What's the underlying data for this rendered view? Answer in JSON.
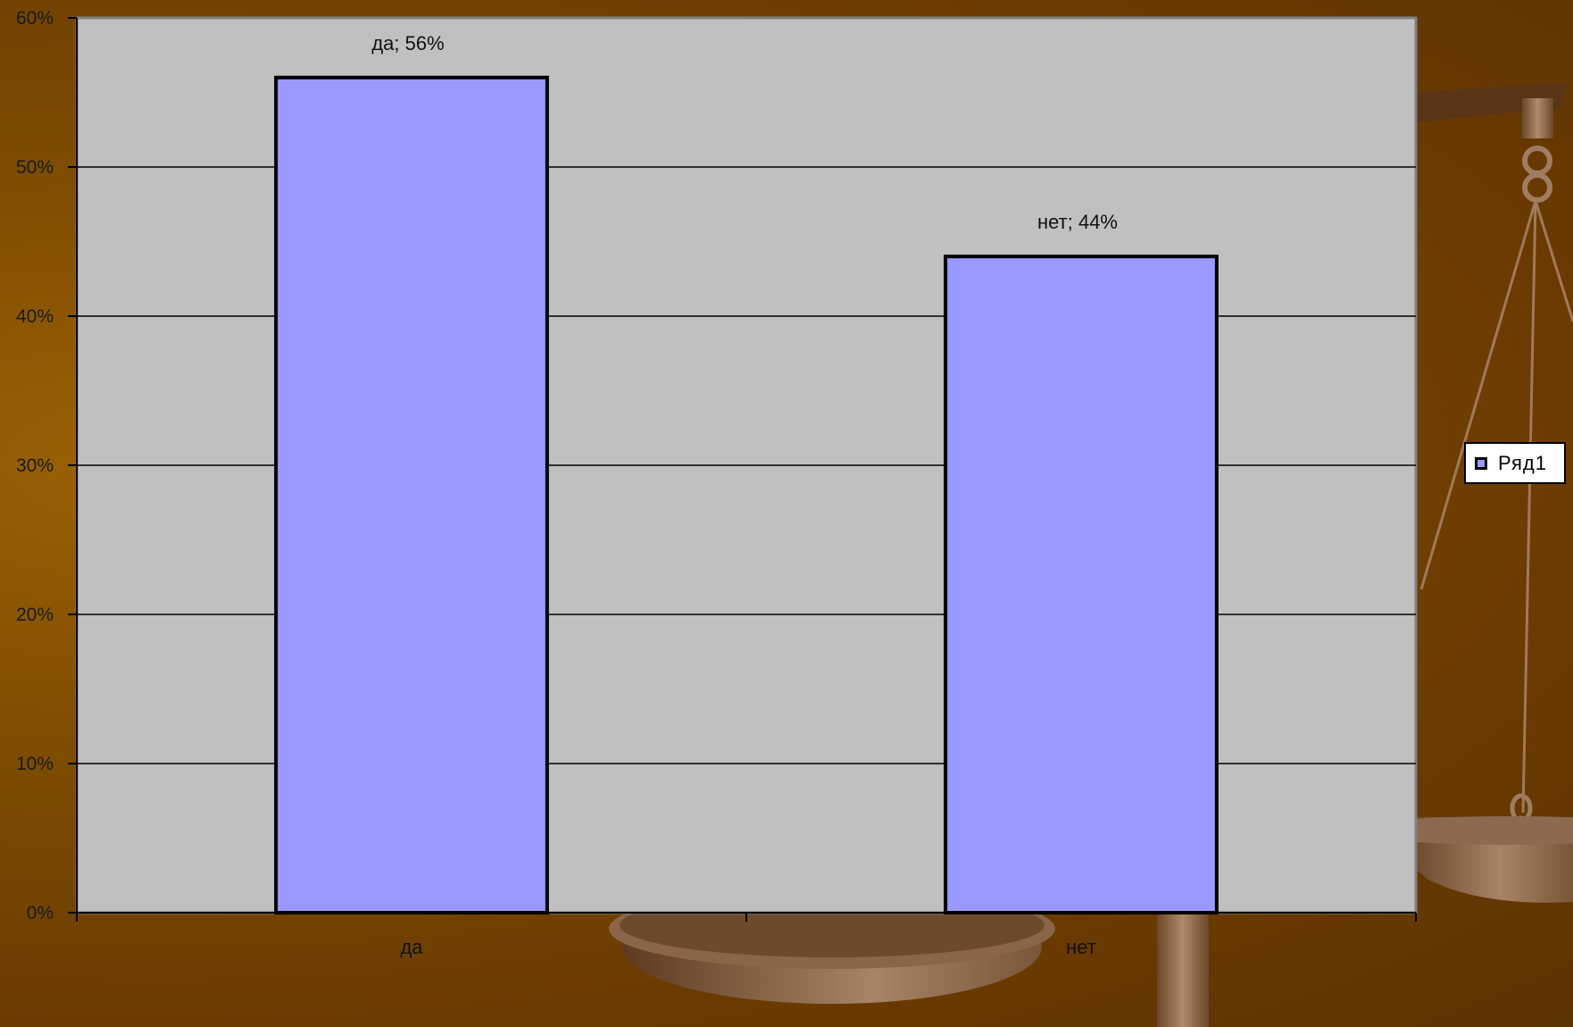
{
  "chart_data": {
    "type": "bar",
    "categories": [
      "да",
      "нет"
    ],
    "series": [
      {
        "name": "Ряд1",
        "values": [
          56,
          44
        ]
      }
    ],
    "data_labels": [
      "да; 56%",
      "нет; 44%"
    ],
    "y_ticks": [
      "0%",
      "10%",
      "20%",
      "30%",
      "40%",
      "50%",
      "60%"
    ],
    "ylim": [
      0,
      60
    ],
    "grid": true,
    "legend_position": "right",
    "title": "",
    "xlabel": "",
    "ylabel": ""
  },
  "colors": {
    "bar_fill": "#9999ff",
    "plot_area": "#c0c0c0",
    "background": "#7f4d02"
  },
  "legend": {
    "label": "Ряд1",
    "swatch_icon": "square-swatch-icon"
  }
}
